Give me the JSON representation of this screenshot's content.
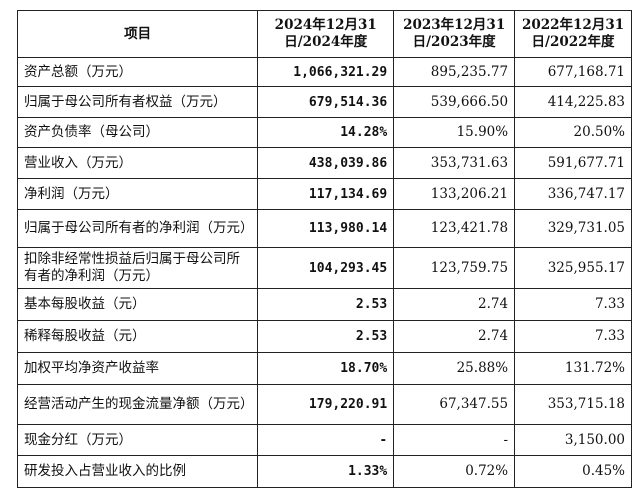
{
  "headers": [
    "项目",
    "2024年12月31日/2024年度",
    "2023年12月31日/2023年度",
    "2022年12月31日/2022年度"
  ],
  "rows": [
    {
      "label": "资产总额（万元）",
      "v2024": "1,066,321.29",
      "v2023": "895,235.77",
      "v2022": "677,168.71"
    },
    {
      "label": "归属于母公司所有者权益（万元）",
      "v2024": "679,514.36",
      "v2023": "539,666.50",
      "v2022": "414,225.83"
    },
    {
      "label": "资产负债率（母公司）",
      "v2024": "14.28%",
      "v2023": "15.90%",
      "v2022": "20.50%"
    },
    {
      "label": "营业收入（万元）",
      "v2024": "438,039.86",
      "v2023": "353,731.63",
      "v2022": "591,677.71"
    },
    {
      "label": "净利润（万元）",
      "v2024": "117,134.69",
      "v2023": "133,206.21",
      "v2022": "336,747.17"
    },
    {
      "label": "归属于母公司所有者的净利润（万元）",
      "v2024": "113,980.14",
      "v2023": "123,421.78",
      "v2022": "329,731.05"
    },
    {
      "label": "扣除非经常性损益后归属于母公司所有者的净利润（万元）",
      "v2024": "104,293.45",
      "v2023": "123,759.75",
      "v2022": "325,955.17"
    },
    {
      "label": "基本每股收益（元）",
      "v2024": "2.53",
      "v2023": "2.74",
      "v2022": "7.33"
    },
    {
      "label": "稀释每股收益（元）",
      "v2024": "2.53",
      "v2023": "2.74",
      "v2022": "7.33"
    },
    {
      "label": "加权平均净资产收益率",
      "v2024": "18.70%",
      "v2023": "25.88%",
      "v2022": "131.72%"
    },
    {
      "label": "经营活动产生的现金流量净额（万元）",
      "v2024": "179,220.91",
      "v2023": "67,347.55",
      "v2022": "353,715.18"
    },
    {
      "label": "现金分红（万元）",
      "v2024": "-",
      "v2023": "-",
      "v2022": "3,150.00"
    },
    {
      "label": "研发投入占营业收入的比例",
      "v2024": "1.33%",
      "v2023": "0.72%",
      "v2022": "0.45%"
    }
  ]
}
